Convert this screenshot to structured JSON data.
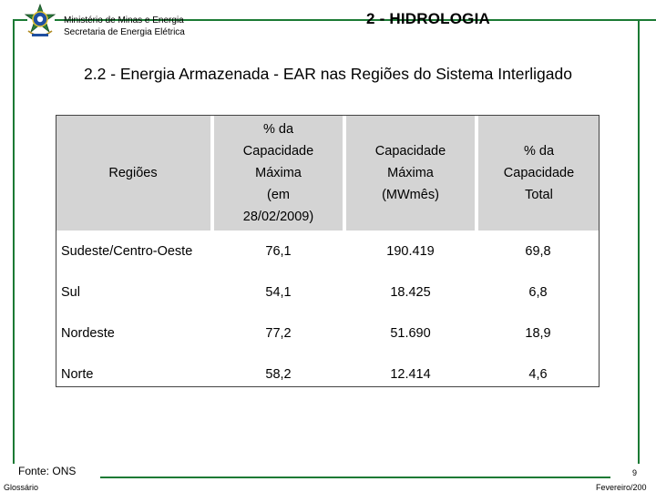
{
  "header": {
    "ministry_line1": "Ministério de Minas e Energia",
    "ministry_line2": "Secretaria de Energia Elétrica",
    "section": "2 - HIDROLOGIA"
  },
  "main_title": "2.2 - Energia Armazenada - EAR nas Regiões do Sistema Interligado",
  "table": {
    "headers": [
      [
        "Regiões"
      ],
      [
        "% da",
        "Capacidade",
        "Máxima",
        "(em",
        "28/02/2009)"
      ],
      [
        "Capacidade",
        "Máxima",
        "(MWmês)"
      ],
      [
        "% da",
        "Capacidade",
        "Total"
      ]
    ],
    "rows": [
      [
        "Sudeste/Centro-Oeste",
        "76,1",
        "190.419",
        "69,8"
      ],
      [
        "Sul",
        "54,1",
        "18.425",
        "6,8"
      ],
      [
        "Nordeste",
        "77,2",
        "51.690",
        "18,9"
      ],
      [
        "Norte",
        "58,2",
        "12.414",
        "4,6"
      ]
    ]
  },
  "footer": {
    "source": "Fonte: ONS",
    "glossary": "Glossário",
    "page_number": "9",
    "date": "Fevereiro/200"
  },
  "colors": {
    "frame": "#1b7a34",
    "header_fill": "#d4d4d4",
    "table_border": "#444444"
  },
  "icons": [
    "brazil-coat-of-arms-icon"
  ]
}
